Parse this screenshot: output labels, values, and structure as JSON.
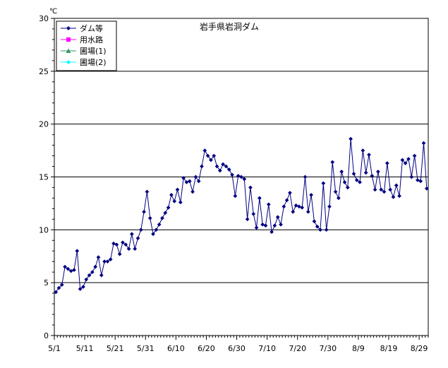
{
  "chart_data": {
    "type": "line",
    "title": "岩手県岩洞ダム",
    "ylabel": "℃",
    "xlabel": "",
    "ylim": [
      0,
      30
    ],
    "yticks": [
      "0",
      "5",
      "10",
      "15",
      "20",
      "25",
      "30"
    ],
    "xticks": [
      "5/1",
      "5/11",
      "5/21",
      "5/31",
      "6/10",
      "6/20",
      "6/30",
      "7/10",
      "7/20",
      "7/30",
      "8/9",
      "8/19",
      "8/29"
    ],
    "grid": true,
    "legend_position": "top-left",
    "legend": [
      {
        "name": "ダム等",
        "color": "#000080",
        "marker": "diamond"
      },
      {
        "name": "用水路",
        "color": "#ff00ff",
        "marker": "square"
      },
      {
        "name": "圃場(1)",
        "color": "#339966",
        "marker": "triangle"
      },
      {
        "name": "圃場(2)",
        "color": "#00ffff",
        "marker": "diamond"
      }
    ],
    "series": [
      {
        "name": "ダム等",
        "color": "#000080",
        "start": "5/1",
        "values": [
          4.1,
          4.5,
          4.8,
          6.5,
          6.3,
          6.1,
          6.2,
          8.0,
          4.4,
          4.6,
          5.3,
          5.7,
          6.0,
          6.5,
          7.4,
          5.7,
          7.0,
          7.0,
          7.2,
          8.7,
          8.6,
          7.7,
          8.8,
          8.6,
          8.2,
          9.6,
          8.2,
          9.2,
          10.0,
          11.7,
          13.6,
          11.1,
          9.6,
          10.0,
          10.5,
          11.1,
          11.6,
          12.1,
          13.3,
          12.7,
          13.8,
          12.6,
          14.9,
          14.5,
          14.6,
          13.6,
          15.0,
          14.6,
          16.0,
          17.5,
          17.0,
          16.6,
          17.0,
          16.0,
          15.6,
          16.2,
          16.0,
          15.7,
          15.2,
          13.2,
          15.1,
          15.0,
          14.8,
          11.0,
          14.0,
          11.5,
          10.2,
          13.0,
          10.5,
          10.4,
          12.4,
          9.8,
          10.4,
          11.2,
          10.5,
          12.2,
          12.8,
          13.5,
          11.7,
          12.3,
          12.2,
          12.1,
          15.0,
          11.7,
          13.3,
          10.8,
          10.3,
          10.0,
          14.4,
          10.0,
          12.2,
          16.4,
          13.6,
          13.0,
          15.5,
          14.5,
          14.0,
          18.6,
          15.3,
          14.7,
          14.5,
          17.5,
          15.4,
          17.1,
          15.1,
          13.8,
          15.5,
          13.8,
          13.6,
          16.3,
          13.8,
          13.1,
          14.2,
          13.2,
          16.6,
          16.3,
          16.7,
          15.0,
          17.0,
          14.7,
          14.6,
          18.2,
          13.9
        ]
      }
    ]
  }
}
